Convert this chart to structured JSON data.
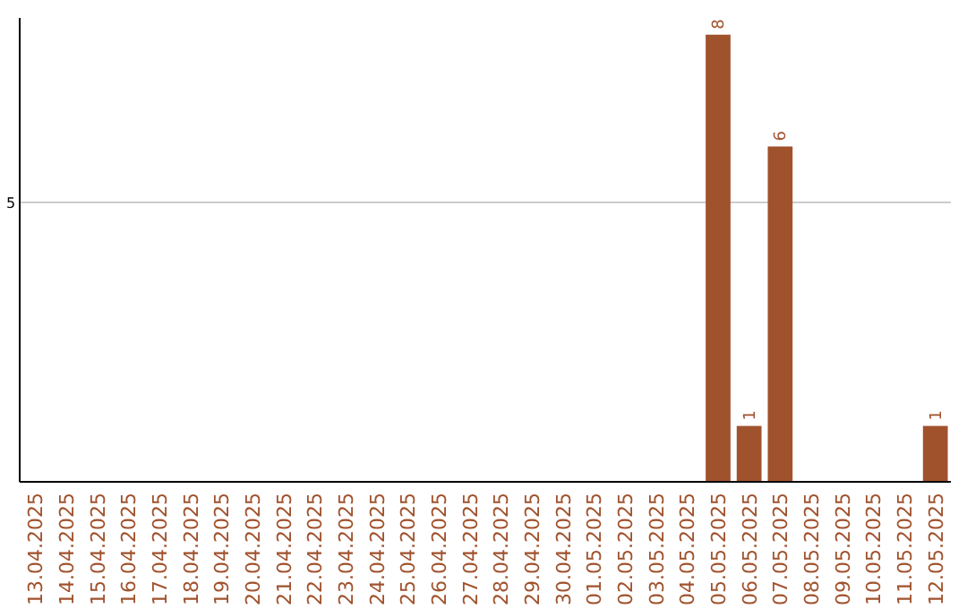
{
  "chart_data": {
    "type": "bar",
    "categories": [
      "13.04.2025",
      "14.04.2025",
      "15.04.2025",
      "16.04.2025",
      "17.04.2025",
      "18.04.2025",
      "19.04.2025",
      "20.04.2025",
      "21.04.2025",
      "22.04.2025",
      "23.04.2025",
      "24.04.2025",
      "25.04.2025",
      "26.04.2025",
      "27.04.2025",
      "28.04.2025",
      "29.04.2025",
      "30.04.2025",
      "01.05.2025",
      "02.05.2025",
      "03.05.2025",
      "04.05.2025",
      "05.05.2025",
      "06.05.2025",
      "07.05.2025",
      "08.05.2025",
      "09.05.2025",
      "10.05.2025",
      "11.05.2025",
      "12.05.2025"
    ],
    "values": [
      null,
      null,
      null,
      null,
      null,
      null,
      null,
      null,
      null,
      null,
      null,
      null,
      null,
      null,
      null,
      null,
      null,
      null,
      null,
      null,
      null,
      null,
      8,
      1,
      6,
      null,
      null,
      null,
      null,
      1
    ],
    "data_labels": true,
    "color": "#a0522d",
    "ylim": [
      0,
      8.3
    ],
    "yticks": [
      5
    ],
    "grid": "y"
  }
}
